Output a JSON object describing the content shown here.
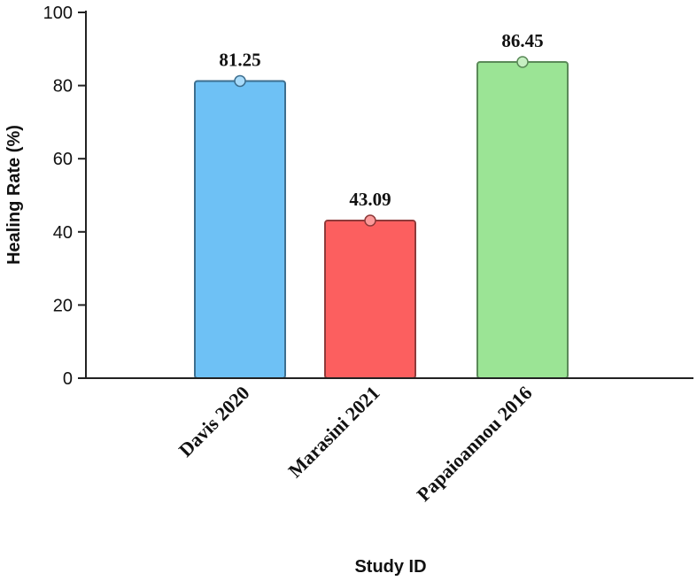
{
  "chart_data": {
    "type": "bar",
    "title": "",
    "xlabel": "Study ID",
    "ylabel": "Healing Rate (%)",
    "categories": [
      "Davis 2020",
      "Marasini 2021",
      "Papaioannou 2016"
    ],
    "values": [
      81.25,
      43.09,
      86.45
    ],
    "value_labels": [
      "81.25",
      "43.09",
      "86.45"
    ],
    "ylim": [
      0,
      100
    ],
    "yticks": [
      0,
      20,
      40,
      60,
      80,
      100
    ],
    "ytick_labels": [
      "0",
      "20",
      "40",
      "60",
      "80",
      "100"
    ],
    "grid": false,
    "legend": "none",
    "colors": {
      "fill": [
        "#6ec1f5",
        "#fc5f5f",
        "#9be495"
      ],
      "stroke": [
        "#3d6f8f",
        "#8f3a3a",
        "#5a8a58"
      ],
      "marker": [
        "#a9dbfa",
        "#fb9a9a",
        "#c6efc2"
      ]
    }
  }
}
